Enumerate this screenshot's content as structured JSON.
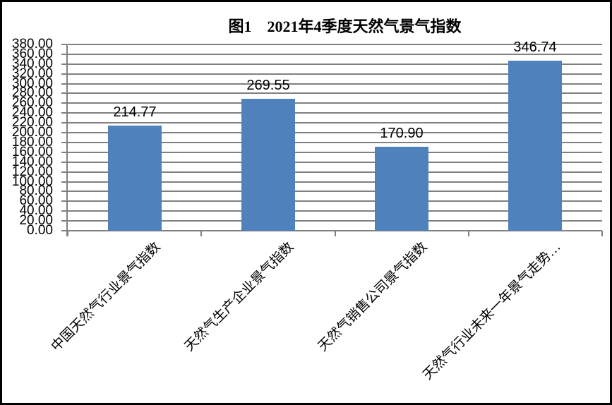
{
  "chart_data": {
    "type": "bar",
    "title": "图1　2021年4季度天然气景气指数",
    "categories": [
      "中国天然气行业景气指数",
      "天然气生产企业景气指数",
      "天然气销售公司景气指数",
      "天然气行业未来一年景气走势…"
    ],
    "values": [
      214.77,
      269.55,
      170.9,
      346.74
    ],
    "value_labels": [
      "214.77",
      "269.55",
      "170.90",
      "346.74"
    ],
    "xlabel": "",
    "ylabel": "",
    "ylim": [
      0,
      380
    ],
    "ytick_step": 20,
    "ytick_labels": [
      "0.00",
      "20.00",
      "40.00",
      "60.00",
      "80.00",
      "100.00",
      "120.00",
      "140.00",
      "160.00",
      "180.00",
      "200.00",
      "220.00",
      "240.00",
      "260.00",
      "280.00",
      "300.00",
      "320.00",
      "340.00",
      "360.00",
      "380.00"
    ],
    "grid": true,
    "legend_position": "none",
    "bar_color": "#4F81BD",
    "gridline_color": "#808080",
    "frame_color": "#000000"
  }
}
